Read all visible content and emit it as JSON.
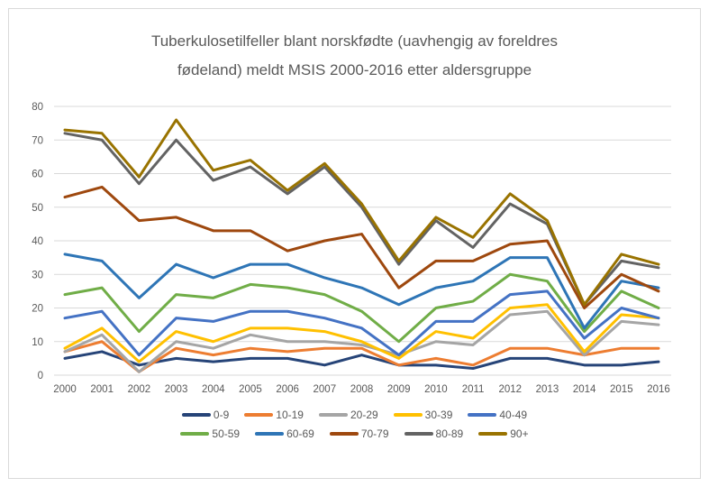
{
  "chart": {
    "title_line1": "Tuberkulosetilfeller blant norskfødte (uavhengig av foreldres",
    "title_line2": "fødeland) meldt MSIS 2000-2016 etter aldersgruppe"
  },
  "colors": {
    "text": "#595959",
    "grid": "#D9D9D9",
    "frame_border": "#D9D9D9",
    "background": "#FFFFFF"
  },
  "chart_data": {
    "type": "line",
    "title": "Tuberkulosetilfeller blant norskfødte (uavhengig av foreldres fødeland) meldt MSIS 2000-2016 etter aldersgruppe",
    "xlabel": "",
    "ylabel": "",
    "x": [
      2000,
      2001,
      2002,
      2003,
      2004,
      2005,
      2006,
      2007,
      2008,
      2009,
      2010,
      2011,
      2012,
      2013,
      2014,
      2015,
      2016
    ],
    "ylim": [
      0,
      80
    ],
    "yticks": [
      0,
      10,
      20,
      30,
      40,
      50,
      60,
      70,
      80
    ],
    "grid": true,
    "legend_position": "bottom",
    "series": [
      {
        "name": "0-9",
        "color": "#264478",
        "values": [
          5,
          7,
          3,
          5,
          4,
          5,
          5,
          3,
          6,
          3,
          3,
          2,
          5,
          5,
          3,
          3,
          4
        ]
      },
      {
        "name": "10-19",
        "color": "#ED7D31",
        "values": [
          7,
          10,
          1,
          8,
          6,
          8,
          7,
          8,
          8,
          3,
          5,
          3,
          8,
          8,
          6,
          8,
          8
        ]
      },
      {
        "name": "20-29",
        "color": "#A5A5A5",
        "values": [
          7,
          12,
          1,
          10,
          8,
          12,
          10,
          10,
          9,
          6,
          10,
          9,
          18,
          19,
          6,
          16,
          15
        ]
      },
      {
        "name": "30-39",
        "color": "#FFC000",
        "values": [
          8,
          14,
          4,
          13,
          10,
          14,
          14,
          13,
          10,
          5,
          13,
          11,
          20,
          21,
          7,
          18,
          17
        ]
      },
      {
        "name": "40-49",
        "color": "#4472C4",
        "values": [
          17,
          19,
          6,
          17,
          16,
          19,
          19,
          17,
          14,
          6,
          16,
          16,
          24,
          25,
          11,
          20,
          17
        ]
      },
      {
        "name": "50-59",
        "color": "#70AD47",
        "values": [
          24,
          26,
          13,
          24,
          23,
          27,
          26,
          24,
          19,
          10,
          20,
          22,
          30,
          28,
          13,
          25,
          20
        ]
      },
      {
        "name": "60-69",
        "color": "#2E75B6",
        "values": [
          36,
          34,
          23,
          33,
          29,
          33,
          33,
          29,
          26,
          21,
          26,
          28,
          35,
          35,
          14,
          28,
          26
        ]
      },
      {
        "name": "70-79",
        "color": "#9E480E",
        "values": [
          53,
          56,
          46,
          47,
          43,
          43,
          37,
          40,
          42,
          26,
          34,
          34,
          39,
          40,
          20,
          30,
          25
        ]
      },
      {
        "name": "80-89",
        "color": "#636363",
        "values": [
          72,
          70,
          57,
          70,
          58,
          62,
          54,
          62,
          50,
          33,
          46,
          38,
          51,
          45,
          21,
          34,
          32
        ]
      },
      {
        "name": "90+",
        "color": "#997300",
        "values": [
          73,
          72,
          59,
          76,
          61,
          64,
          55,
          63,
          51,
          34,
          47,
          41,
          54,
          46,
          21,
          36,
          33
        ]
      }
    ]
  }
}
